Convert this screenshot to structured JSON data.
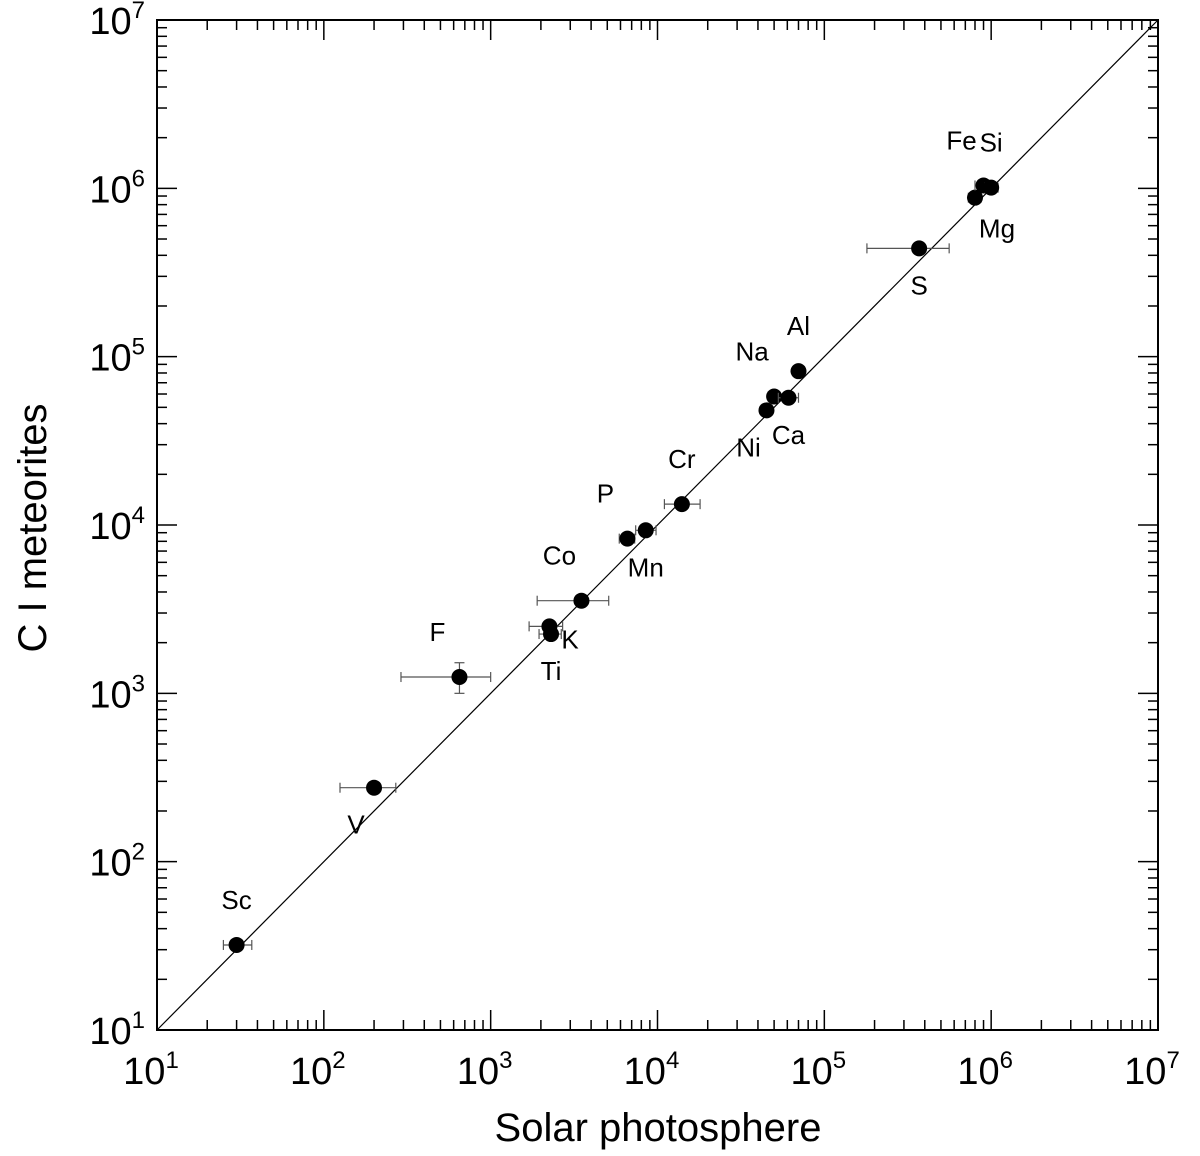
{
  "chart_data": {
    "type": "scatter",
    "title": "",
    "xlabel": "Solar photosphere",
    "ylabel": "C I meteorites",
    "xscale": "log",
    "yscale": "log",
    "xlim": [
      10,
      10000000
    ],
    "ylim": [
      10,
      10000000
    ],
    "grid": false,
    "legend": "none",
    "reference_line": "y = x",
    "x_ticks": [
      {
        "base": "10",
        "exp": "1"
      },
      {
        "base": "10",
        "exp": "2"
      },
      {
        "base": "10",
        "exp": "3"
      },
      {
        "base": "10",
        "exp": "4"
      },
      {
        "base": "10",
        "exp": "5"
      },
      {
        "base": "10",
        "exp": "6"
      },
      {
        "base": "10",
        "exp": "7"
      }
    ],
    "y_ticks": [
      {
        "base": "10",
        "exp": "1"
      },
      {
        "base": "10",
        "exp": "2"
      },
      {
        "base": "10",
        "exp": "3"
      },
      {
        "base": "10",
        "exp": "4"
      },
      {
        "base": "10",
        "exp": "5"
      },
      {
        "base": "10",
        "exp": "6"
      },
      {
        "base": "10",
        "exp": "7"
      }
    ],
    "points": [
      {
        "label": "Sc",
        "x": 30,
        "y": 32,
        "xerr": [
          25,
          37
        ],
        "label_pos": "above"
      },
      {
        "label": "V",
        "x": 200,
        "y": 275,
        "xerr": [
          125,
          270
        ],
        "label_pos": "below-left"
      },
      {
        "label": "F",
        "x": 650,
        "y": 1250,
        "xerr": [
          290,
          1000
        ],
        "yerr": [
          1000,
          1520
        ],
        "label_pos": "above-left"
      },
      {
        "label": "Ti",
        "x": 2300,
        "y": 2250,
        "xerr": [
          1950,
          2650
        ],
        "label_pos": "below"
      },
      {
        "label": "K",
        "x": 2250,
        "y": 2500,
        "xerr": [
          1700,
          2700
        ],
        "label_pos": "right"
      },
      {
        "label": "Co",
        "x": 3500,
        "y": 3550,
        "xerr": [
          1900,
          5100
        ],
        "label_pos": "above-left"
      },
      {
        "label": "P",
        "x": 6600,
        "y": 8300,
        "xerr": [
          5900,
          7300
        ],
        "label_pos": "above-left"
      },
      {
        "label": "Mn",
        "x": 8500,
        "y": 9300,
        "xerr": [
          7400,
          9800
        ],
        "label_pos": "below"
      },
      {
        "label": "Cr",
        "x": 14000,
        "y": 13300,
        "xerr": [
          11000,
          18000
        ],
        "label_pos": "above"
      },
      {
        "label": "Ni",
        "x": 45000,
        "y": 48000,
        "xerr": [
          42000,
          48500
        ],
        "label_pos": "below-left"
      },
      {
        "label": "Na",
        "x": 50000,
        "y": 58000,
        "xerr": [
          46000,
          54000
        ],
        "label_pos": "above-left"
      },
      {
        "label": "Ca",
        "x": 61000,
        "y": 57000,
        "xerr": [
          53000,
          70000
        ],
        "label_pos": "below"
      },
      {
        "label": "Al",
        "x": 70000,
        "y": 82000,
        "xerr": [
          65000,
          76000
        ],
        "label_pos": "above"
      },
      {
        "label": "S",
        "x": 370000,
        "y": 440000,
        "xerr": [
          180000,
          560000
        ],
        "label_pos": "below"
      },
      {
        "label": "Mg",
        "x": 800000,
        "y": 880000,
        "xerr": [
          730000,
          870000
        ],
        "label_pos": "below-right"
      },
      {
        "label": "Fe",
        "x": 900000,
        "y": 1040000,
        "xerr": [
          800000,
          1000000
        ],
        "label_pos": "above-left"
      },
      {
        "label": "Si",
        "x": 1000000,
        "y": 1010000,
        "xerr": [
          920000,
          1100000
        ],
        "label_pos": "above"
      }
    ]
  }
}
